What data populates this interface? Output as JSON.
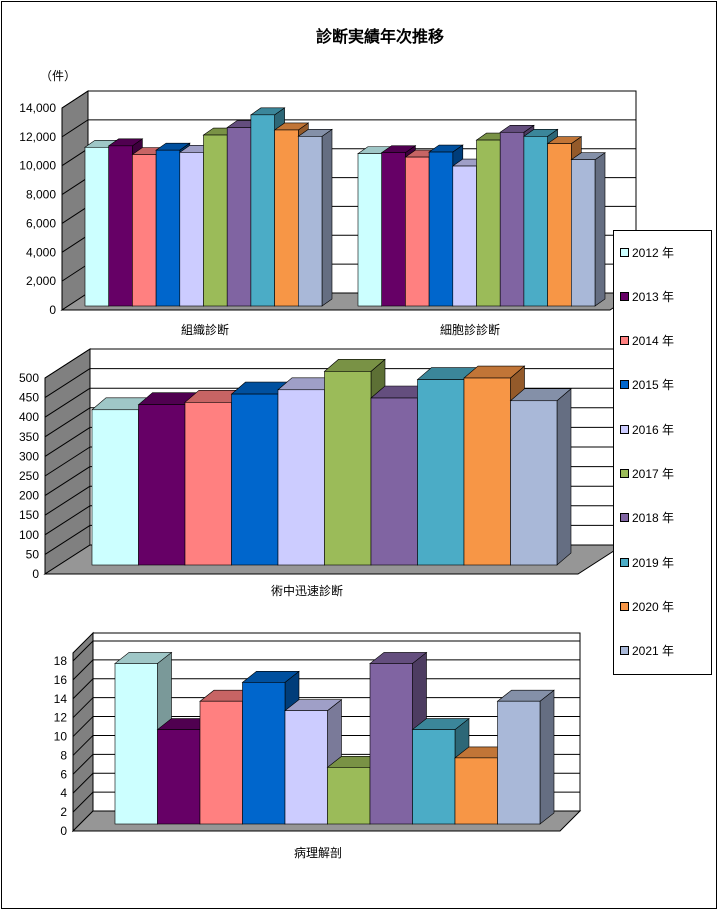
{
  "title": "診断実績年次推移",
  "unit_label": "（件）",
  "legend": [
    "2012 年",
    "2013 年",
    "2014 年",
    "2015 年",
    "2016 年",
    "2017 年",
    "2018 年",
    "2019 年",
    "2020 年",
    "2021 年"
  ],
  "colors": [
    "#ccffff",
    "#660066",
    "#ff8080",
    "#0066cc",
    "#ccccff",
    "#9bbb59",
    "#8064a2",
    "#4bacc6",
    "#f79646",
    "#a9b8d8"
  ],
  "chart_data": [
    {
      "type": "bar",
      "title": "",
      "ylabel": "（件）",
      "categories": [
        "組織診断",
        "細胞診診断"
      ],
      "ylim": [
        0,
        14000
      ],
      "yticks": [
        "0",
        "2,000",
        "4,000",
        "6,000",
        "8,000",
        "10,000",
        "12,000",
        "14,000"
      ],
      "series": [
        {
          "name": "2012 年",
          "values": [
            11000,
            10560
          ]
        },
        {
          "name": "2013 年",
          "values": [
            11100,
            10630
          ]
        },
        {
          "name": "2014 年",
          "values": [
            10500,
            10320
          ]
        },
        {
          "name": "2015 年",
          "values": [
            10800,
            10670
          ]
        },
        {
          "name": "2016 年",
          "values": [
            10650,
            9700
          ]
        },
        {
          "name": "2017 年",
          "values": [
            11850,
            11500
          ]
        },
        {
          "name": "2018 年",
          "values": [
            12370,
            12040
          ]
        },
        {
          "name": "2019 年",
          "values": [
            13250,
            11760
          ]
        },
        {
          "name": "2020 年",
          "values": [
            12200,
            11250
          ]
        },
        {
          "name": "2021 年",
          "values": [
            11760,
            10140
          ]
        }
      ]
    },
    {
      "type": "bar",
      "categories": [
        "術中迅速診断"
      ],
      "ylim": [
        0,
        500
      ],
      "yticks": [
        "0",
        "50",
        "100",
        "150",
        "200",
        "250",
        "300",
        "350",
        "400",
        "450",
        "500"
      ],
      "series": [
        {
          "name": "2012 年",
          "values": [
            396
          ]
        },
        {
          "name": "2013 年",
          "values": [
            409
          ]
        },
        {
          "name": "2014 年",
          "values": [
            415
          ]
        },
        {
          "name": "2015 年",
          "values": [
            436
          ]
        },
        {
          "name": "2016 年",
          "values": [
            447
          ]
        },
        {
          "name": "2017 年",
          "values": [
            494
          ]
        },
        {
          "name": "2018 年",
          "values": [
            426
          ]
        },
        {
          "name": "2019 年",
          "values": [
            473
          ]
        },
        {
          "name": "2020 年",
          "values": [
            477
          ]
        },
        {
          "name": "2021 年",
          "values": [
            419
          ]
        }
      ]
    },
    {
      "type": "bar",
      "categories": [
        "病理解剖"
      ],
      "ylim": [
        0,
        18
      ],
      "yticks": [
        "0",
        "2",
        "4",
        "6",
        "8",
        "10",
        "12",
        "14",
        "16",
        "18"
      ],
      "series": [
        {
          "name": "2012 年",
          "values": [
            17
          ]
        },
        {
          "name": "2013 年",
          "values": [
            10
          ]
        },
        {
          "name": "2014 年",
          "values": [
            13
          ]
        },
        {
          "name": "2015 年",
          "values": [
            15
          ]
        },
        {
          "name": "2016 年",
          "values": [
            12
          ]
        },
        {
          "name": "2017 年",
          "values": [
            6
          ]
        },
        {
          "name": "2018 年",
          "values": [
            17
          ]
        },
        {
          "name": "2019 年",
          "values": [
            10
          ]
        },
        {
          "name": "2020 年",
          "values": [
            7
          ]
        },
        {
          "name": "2021 年",
          "values": [
            13
          ]
        }
      ]
    }
  ]
}
